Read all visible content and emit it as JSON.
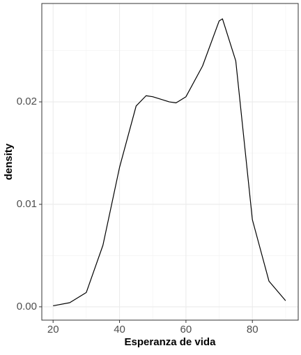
{
  "chart_data": {
    "type": "line",
    "xlabel": "Esperanza de vida",
    "ylabel": "density",
    "x": [
      20,
      25,
      30,
      35,
      40,
      45,
      48,
      50,
      55,
      57,
      60,
      65,
      70,
      71,
      75,
      80,
      85,
      90
    ],
    "series": [
      {
        "color": "#000000",
        "values": [
          0.0001,
          0.0004,
          0.0014,
          0.006,
          0.0136,
          0.0196,
          0.0206,
          0.0205,
          0.02,
          0.0199,
          0.0205,
          0.0235,
          0.0279,
          0.0281,
          0.024,
          0.0085,
          0.0025,
          0.0006
        ]
      }
    ],
    "xlim": [
      16.6,
      93.8
    ],
    "ylim": [
      -0.0013,
      0.0296
    ],
    "xticks": [
      20,
      40,
      60,
      80
    ],
    "yticks": [
      {
        "value": 0,
        "label": "0.00"
      },
      {
        "value": 0.01,
        "label": "0.01"
      },
      {
        "value": 0.02,
        "label": "0.02"
      }
    ],
    "xminorticks": [
      30,
      50,
      70,
      90
    ],
    "yminorticks": [
      0.005,
      0.015,
      0.025
    ],
    "grid": true
  }
}
